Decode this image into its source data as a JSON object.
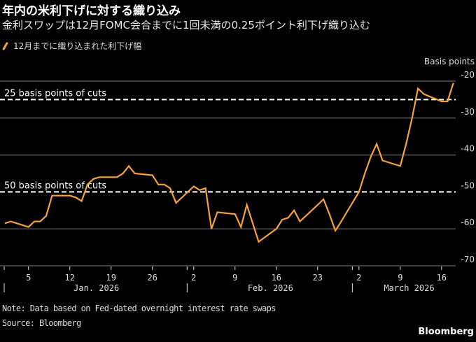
{
  "header": {
    "title": "年内の米利下げに対する織り込み",
    "subtitle": "金利スワップは12月FOMC会合までに1回未満の0.25ポイント利下げ織り込む"
  },
  "footer": {
    "note": "Note: Data based on Fed-dated overnight interest rate swaps",
    "source": "Source: Bloomberg",
    "brand": "Bloomberg"
  },
  "chart_data": {
    "type": "line",
    "title": "年内の米利下げに対する織り込み",
    "subtitle": "金利スワップは12月FOMC会合までに1回未満の0.25ポイント利下げ織り込む",
    "xlabel": "",
    "ylabel": "Basis points",
    "ylim": [
      -70,
      -20
    ],
    "yticks": [
      -20,
      -30,
      -40,
      -50,
      -60,
      -70
    ],
    "ytick_labels": [
      "-20",
      "-30",
      "-40",
      "-50",
      "-60",
      "-70"
    ],
    "grid": true,
    "legend_position": "top-left",
    "x_ticks": [
      {
        "day": 5,
        "label": "5"
      },
      {
        "day": 12,
        "label": "12"
      },
      {
        "day": 19,
        "label": "19"
      },
      {
        "day": 26,
        "label": "26"
      },
      {
        "day": 33,
        "label": "2"
      },
      {
        "day": 40,
        "label": "9"
      },
      {
        "day": 47,
        "label": "16"
      },
      {
        "day": 54,
        "label": "23"
      },
      {
        "day": 61,
        "label": "2"
      },
      {
        "day": 68,
        "label": "9"
      },
      {
        "day": 75,
        "label": "16"
      }
    ],
    "month_labels": [
      {
        "start_day": 1,
        "label": "Jan. 2026"
      },
      {
        "start_day": 32,
        "label": "Feb. 2026"
      },
      {
        "start_day": 60,
        "label": "March 2026"
      }
    ],
    "x_note": "day index counted from Jan 1, 2026 = 1",
    "xlim": [
      1,
      78
    ],
    "reference_lines": [
      {
        "value": -25,
        "label": "25 basis points of cuts"
      },
      {
        "value": -50,
        "label": "50 basis points of cuts"
      }
    ],
    "series": [
      {
        "name": "12月までに織り込まれた利下げ幅",
        "color": "#f6a13a",
        "x": [
          1,
          2,
          5,
          6,
          7,
          8,
          9,
          12,
          13,
          14,
          15,
          16,
          17,
          19,
          20,
          21,
          22,
          23,
          26,
          27,
          28,
          29,
          30,
          33,
          34,
          35,
          36,
          37,
          40,
          41,
          42,
          44,
          47,
          48,
          49,
          50,
          51,
          54,
          55,
          56,
          57,
          58,
          61,
          62,
          63,
          64,
          65,
          68,
          69,
          70,
          71,
          72,
          75,
          76,
          77
        ],
        "values": [
          -58.5,
          -58,
          -59.5,
          -58,
          -58,
          -56.5,
          -51,
          -51,
          -51.5,
          -52.5,
          -48,
          -46.5,
          -46,
          -46,
          -46,
          -45,
          -43,
          -45,
          -45.5,
          -48,
          -48,
          -49,
          -53,
          -48.5,
          -49.5,
          -49,
          -60,
          -55.5,
          -56,
          -59.5,
          -53.5,
          -63.5,
          -60,
          -57.5,
          -57,
          -55,
          -58,
          -53.5,
          -52,
          -56,
          -60.5,
          -58,
          -50,
          -45,
          -40.5,
          -37,
          -41.5,
          -43,
          -37,
          -30,
          -22,
          -23.5,
          -25.5,
          -25.5,
          -20.5
        ]
      }
    ]
  }
}
